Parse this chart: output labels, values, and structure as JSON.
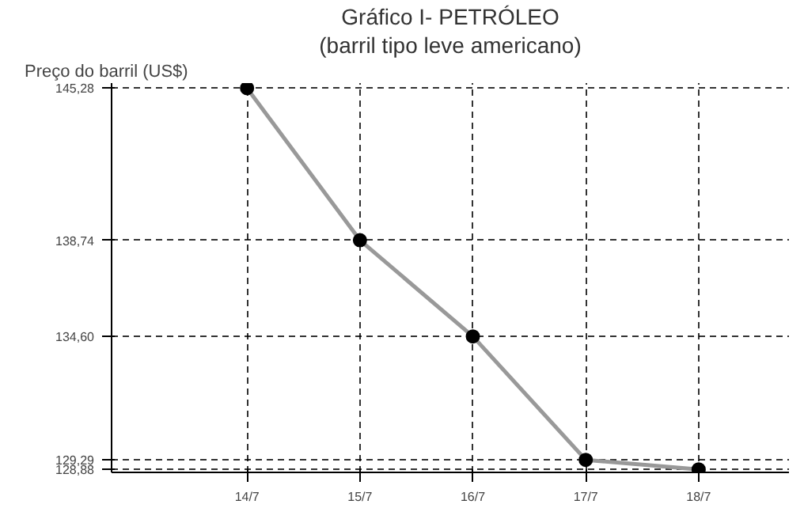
{
  "chart_data": {
    "type": "line",
    "title": "Gráfico I- PETRÓLEO",
    "subtitle": "(barril tipo leve americano)",
    "ylabel": "Preço do barril (US$)",
    "categories": [
      "14/7",
      "15/7",
      "16/7",
      "17/7",
      "18/7"
    ],
    "series": [
      {
        "color": "#999999",
        "values": [
          145.28,
          138.74,
          134.6,
          129.29,
          128.88
        ]
      }
    ],
    "ylim": [
      128.75,
      145.5
    ],
    "yticks": [
      {
        "value": 128.88,
        "label": "128,88"
      },
      {
        "value": 129.29,
        "label": "129,29"
      },
      {
        "value": 134.6,
        "label": "134,60"
      },
      {
        "value": 138.74,
        "label": "138,74"
      },
      {
        "value": 145.28,
        "label": "145,28"
      }
    ],
    "grid": true,
    "marker": "circle"
  }
}
